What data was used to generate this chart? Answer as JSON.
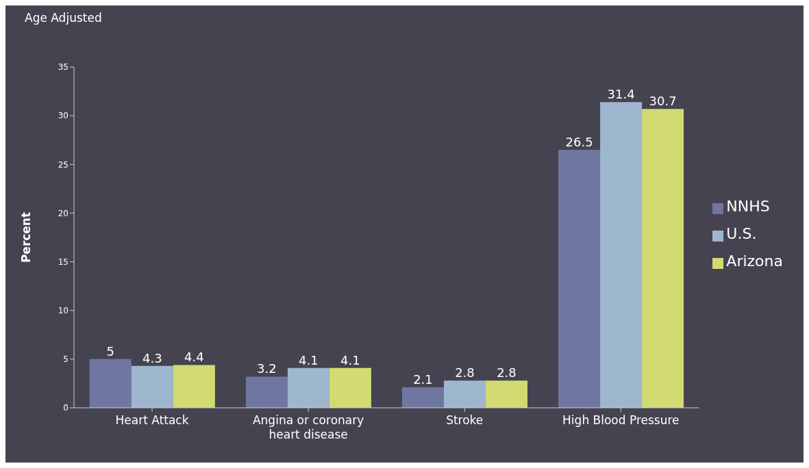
{
  "chart_data": {
    "type": "bar",
    "title": "Age Adjusted",
    "ylabel": "Percent",
    "categories": [
      "Heart Attack",
      "Angina or coronary heart disease",
      "Stroke",
      "High Blood Pressure"
    ],
    "series": [
      {
        "name": "NNHS",
        "color": "#6f76a0",
        "values": [
          5,
          3.2,
          2.1,
          26.5
        ]
      },
      {
        "name": "U.S.",
        "color": "#9fb6cf",
        "values": [
          4.3,
          4.1,
          2.8,
          31.4
        ]
      },
      {
        "name": "Arizona",
        "color": "#d2da72",
        "values": [
          4.4,
          4.1,
          2.8,
          30.7
        ]
      }
    ],
    "ylim": [
      0,
      35
    ],
    "yticks": [
      0,
      5,
      10,
      15,
      20,
      25,
      30,
      35
    ],
    "data_labels": true,
    "grid": false,
    "legend": "right"
  }
}
